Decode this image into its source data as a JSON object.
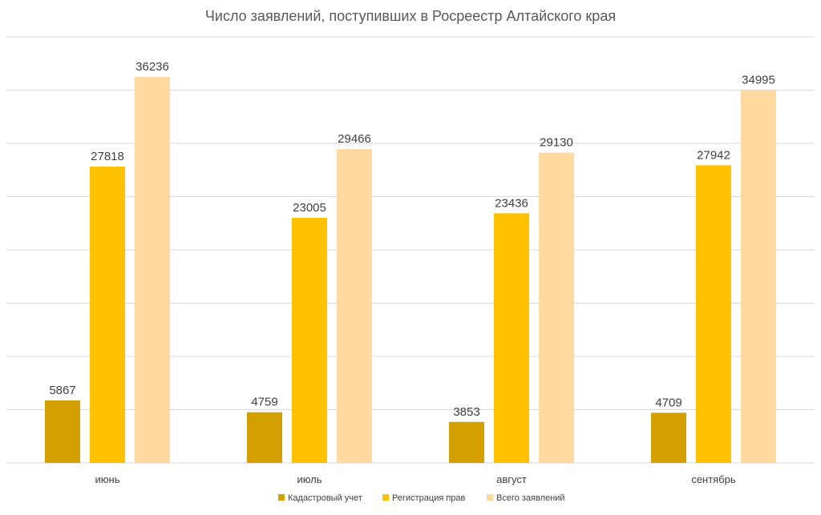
{
  "chart_data": {
    "type": "bar",
    "title": "Число заявлений, поступивших в Росреестр Алтайского края",
    "xlabel": "",
    "ylabel": "",
    "categories": [
      "июнь",
      "июль",
      "август",
      "сентябрь"
    ],
    "series": [
      {
        "name": "Кадастровый учет",
        "values": [
          5867,
          4759,
          3853,
          4709
        ],
        "color": "#d4a000"
      },
      {
        "name": "Регистрация прав",
        "values": [
          27818,
          23005,
          23436,
          27942
        ],
        "color": "#ffc000"
      },
      {
        "name": "Всего заявлений",
        "values": [
          36236,
          29466,
          29130,
          34995
        ],
        "color": "#ffd9a0"
      }
    ],
    "ylim": [
      0,
      40000
    ],
    "grid": true,
    "legend_position": "bottom",
    "show_y_axis_labels": false
  }
}
